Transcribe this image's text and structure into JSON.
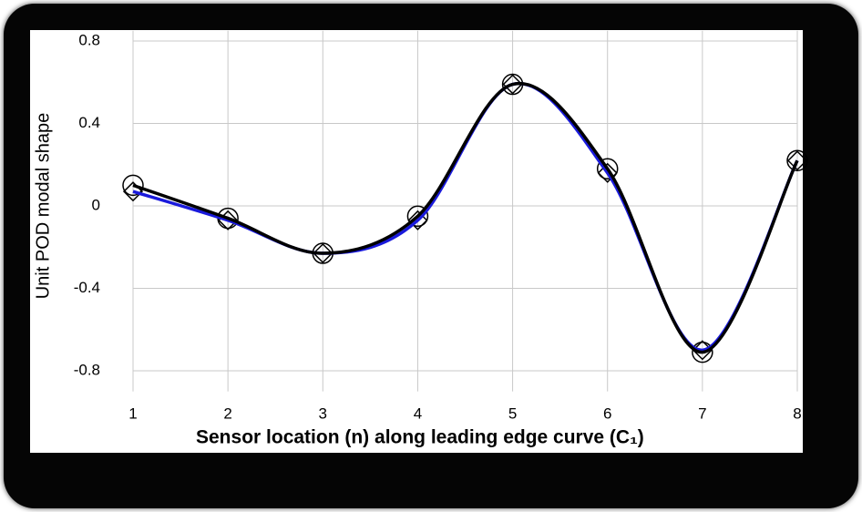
{
  "chart_data": {
    "type": "line",
    "x_label": "Sensor location (n) along leading edge curve (C₁)",
    "y_label": "Unit POD modal shape",
    "x": [
      1,
      2,
      3,
      4,
      5,
      6,
      7,
      8
    ],
    "series": [
      {
        "color": "#000000",
        "marker": "circle",
        "values": [
          0.1,
          -0.06,
          -0.23,
          -0.05,
          0.59,
          0.18,
          -0.71,
          0.22
        ]
      },
      {
        "color": "#1a1adc",
        "marker": "diamond",
        "values": [
          0.07,
          -0.07,
          -0.23,
          -0.07,
          0.59,
          0.16,
          -0.7,
          0.22
        ]
      }
    ],
    "xlim": [
      1,
      8
    ],
    "xticks": [
      1,
      2,
      3,
      4,
      5,
      6,
      7,
      8
    ],
    "ylim": [
      -0.9,
      0.85
    ],
    "yticks": [
      0.8,
      0.4,
      0,
      -0.4,
      -0.8
    ],
    "grid": true,
    "smooth": true
  }
}
